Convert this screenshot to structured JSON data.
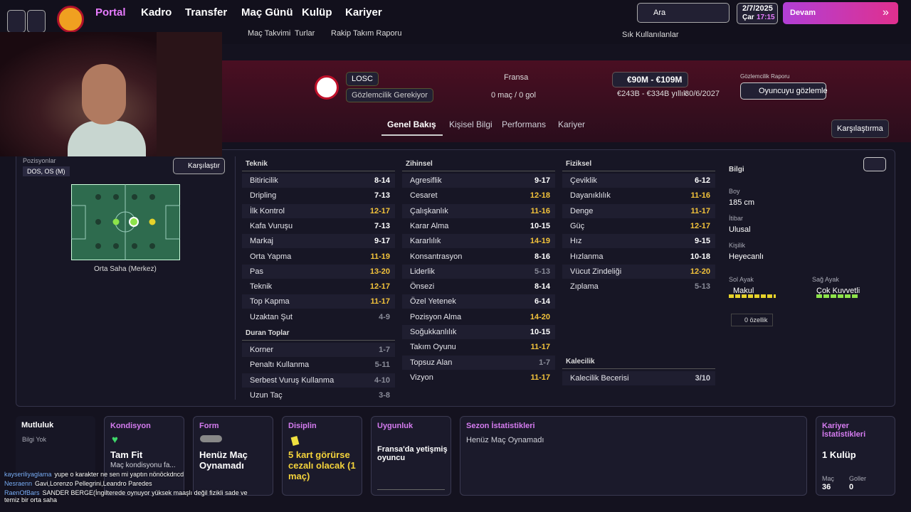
{
  "nav": {
    "items": [
      "Portal",
      "Kadro",
      "Transfer",
      "Maç Günü",
      "Kulüp",
      "Kariyer"
    ],
    "subnav": [
      "Maç Takvimi",
      "Turlar",
      "Rakip Takım Raporu"
    ],
    "search": "Ara",
    "date": "2/7/2025",
    "day": "Çar",
    "time": "17:15",
    "continue": "Devam",
    "favorites": "Sık Kullanılanlar"
  },
  "player": {
    "club": "LOSC",
    "scouting_needed": "Gözlemcilik Gerekiyor",
    "nation": "Fransa",
    "apps": "0 maç / 0 gol",
    "value": "€90M - €109M",
    "wage": "€243B - €334B yıllık",
    "contract": "30/6/2027",
    "report_label": "Gözlemcilik Raporu",
    "report_button": "Oyuncuyu gözlemle"
  },
  "tabs": [
    "Genel Bakış",
    "Kişisel Bilgi",
    "Performans",
    "Kariyer"
  ],
  "compare_tab": "Karşılaştırma",
  "positions": {
    "label": "Pozisyonlar",
    "value": "DOS, OS (M)",
    "compare": "Karşılaştır",
    "role": "Orta Saha (Merkez)"
  },
  "attribute_groups": [
    {
      "title": "Teknik",
      "items": [
        {
          "name": "Bitiricilik",
          "value": "8-14",
          "color": "#ffffff"
        },
        {
          "name": "Dripling",
          "value": "7-13",
          "color": "#ffffff"
        },
        {
          "name": "İlk Kontrol",
          "value": "12-17",
          "color": "#f3c33b"
        },
        {
          "name": "Kafa Vuruşu",
          "value": "7-13",
          "color": "#ffffff"
        },
        {
          "name": "Markaj",
          "value": "9-17",
          "color": "#ffffff"
        },
        {
          "name": "Orta Yapma",
          "value": "11-19",
          "color": "#f3c33b"
        },
        {
          "name": "Pas",
          "value": "13-20",
          "color": "#f3c33b"
        },
        {
          "name": "Teknik",
          "value": "12-17",
          "color": "#f3c33b"
        },
        {
          "name": "Top Kapma",
          "value": "11-17",
          "color": "#f3c33b"
        },
        {
          "name": "Uzaktan Şut",
          "value": "4-9",
          "color": "#8a8c99"
        }
      ]
    },
    {
      "title": "Duran Toplar",
      "items": [
        {
          "name": "Korner",
          "value": "1-7",
          "color": "#8a8c99"
        },
        {
          "name": "Penaltı Kullanma",
          "value": "5-11",
          "color": "#8a8c99"
        },
        {
          "name": "Serbest Vuruş Kullanma",
          "value": "4-10",
          "color": "#8a8c99"
        },
        {
          "name": "Uzun Taç",
          "value": "3-8",
          "color": "#8a8c99"
        }
      ]
    },
    {
      "title": "Zihinsel",
      "items": [
        {
          "name": "Agresiflik",
          "value": "9-17",
          "color": "#ffffff"
        },
        {
          "name": "Cesaret",
          "value": "12-18",
          "color": "#f3c33b"
        },
        {
          "name": "Çalışkanlık",
          "value": "11-16",
          "color": "#f3c33b"
        },
        {
          "name": "Karar Alma",
          "value": "10-15",
          "color": "#ffffff"
        },
        {
          "name": "Kararlılık",
          "value": "14-19",
          "color": "#f3c33b"
        },
        {
          "name": "Konsantrasyon",
          "value": "8-16",
          "color": "#ffffff"
        },
        {
          "name": "Liderlik",
          "value": "5-13",
          "color": "#8a8c99"
        },
        {
          "name": "Önsezi",
          "value": "8-14",
          "color": "#ffffff"
        },
        {
          "name": "Özel Yetenek",
          "value": "6-14",
          "color": "#ffffff"
        },
        {
          "name": "Pozisyon Alma",
          "value": "14-20",
          "color": "#f3c33b"
        },
        {
          "name": "Soğukkanlılık",
          "value": "10-15",
          "color": "#ffffff"
        },
        {
          "name": "Takım Oyunu",
          "value": "11-17",
          "color": "#f3c33b"
        },
        {
          "name": "Topsuz Alan",
          "value": "1-7",
          "color": "#8a8c99"
        },
        {
          "name": "Vizyon",
          "value": "11-17",
          "color": "#f3c33b"
        }
      ]
    },
    {
      "title": "Fiziksel",
      "items": [
        {
          "name": "Çeviklik",
          "value": "6-12",
          "color": "#ffffff"
        },
        {
          "name": "Dayanıklılık",
          "value": "11-16",
          "color": "#f3c33b"
        },
        {
          "name": "Denge",
          "value": "11-17",
          "color": "#f3c33b"
        },
        {
          "name": "Güç",
          "value": "12-17",
          "color": "#f3c33b"
        },
        {
          "name": "Hız",
          "value": "9-15",
          "color": "#ffffff"
        },
        {
          "name": "Hızlanma",
          "value": "10-18",
          "color": "#ffffff"
        },
        {
          "name": "Vücut Zindeliği",
          "value": "12-20",
          "color": "#f3c33b"
        },
        {
          "name": "Zıplama",
          "value": "5-13",
          "color": "#8a8c99"
        }
      ]
    },
    {
      "title": "Kalecilik",
      "items": [
        {
          "name": "Kalecilik Becerisi",
          "value": "3/10",
          "color": "#cfd0d8"
        }
      ]
    }
  ],
  "info": {
    "title": "Bilgi",
    "height_label": "Boy",
    "height": "185 cm",
    "reputation_label": "İtibar",
    "reputation": "Ulusal",
    "personality_label": "Kişilik",
    "personality": "Heyecanlı",
    "left_foot_label": "Sol Ayak",
    "left_foot": "Makul",
    "right_foot_label": "Sağ Ayak",
    "right_foot": "Çok Kuvvetli",
    "traits": "0 özellik"
  },
  "cards": {
    "happiness": {
      "title": "Mutluluk",
      "text": "Bilgi Yok"
    },
    "condition": {
      "title": "Kondisyon",
      "main": "Tam Fit",
      "sub": "Maç kondisyonu fa..."
    },
    "form": {
      "title": "Form",
      "main": "Henüz Maç Oynamadı"
    },
    "discipline": {
      "title": "Disiplin",
      "main": "5 kart görürse cezalı olacak (1 maç)"
    },
    "eligibility": {
      "title": "Uygunluk",
      "main": "Fransa'da yetişmiş oyuncu"
    },
    "season": {
      "title": "Sezon İstatistikleri",
      "text": "Henüz Maç Oynamadı"
    },
    "career": {
      "title": "Kariyer İstatistikleri",
      "clubs": "1 Kulüp",
      "apps_label": "Maç",
      "apps": "36",
      "goals_label": "Goller",
      "goals": "0"
    }
  },
  "chat": [
    {
      "user": "kayseriliyaglama",
      "text": "yupe o karakter ne sen mi yaptın nönöckdncd"
    },
    {
      "user": "Nesraenn",
      "text": "Gavi,Lorenzo Pellegrini,Leandro Paredes"
    },
    {
      "user": "RaenOfBars",
      "text": "SANDER BERGE(İngilterede oynuyor yüksek maaşlı değil fizikli sade ve temiz bir orta saha"
    }
  ]
}
